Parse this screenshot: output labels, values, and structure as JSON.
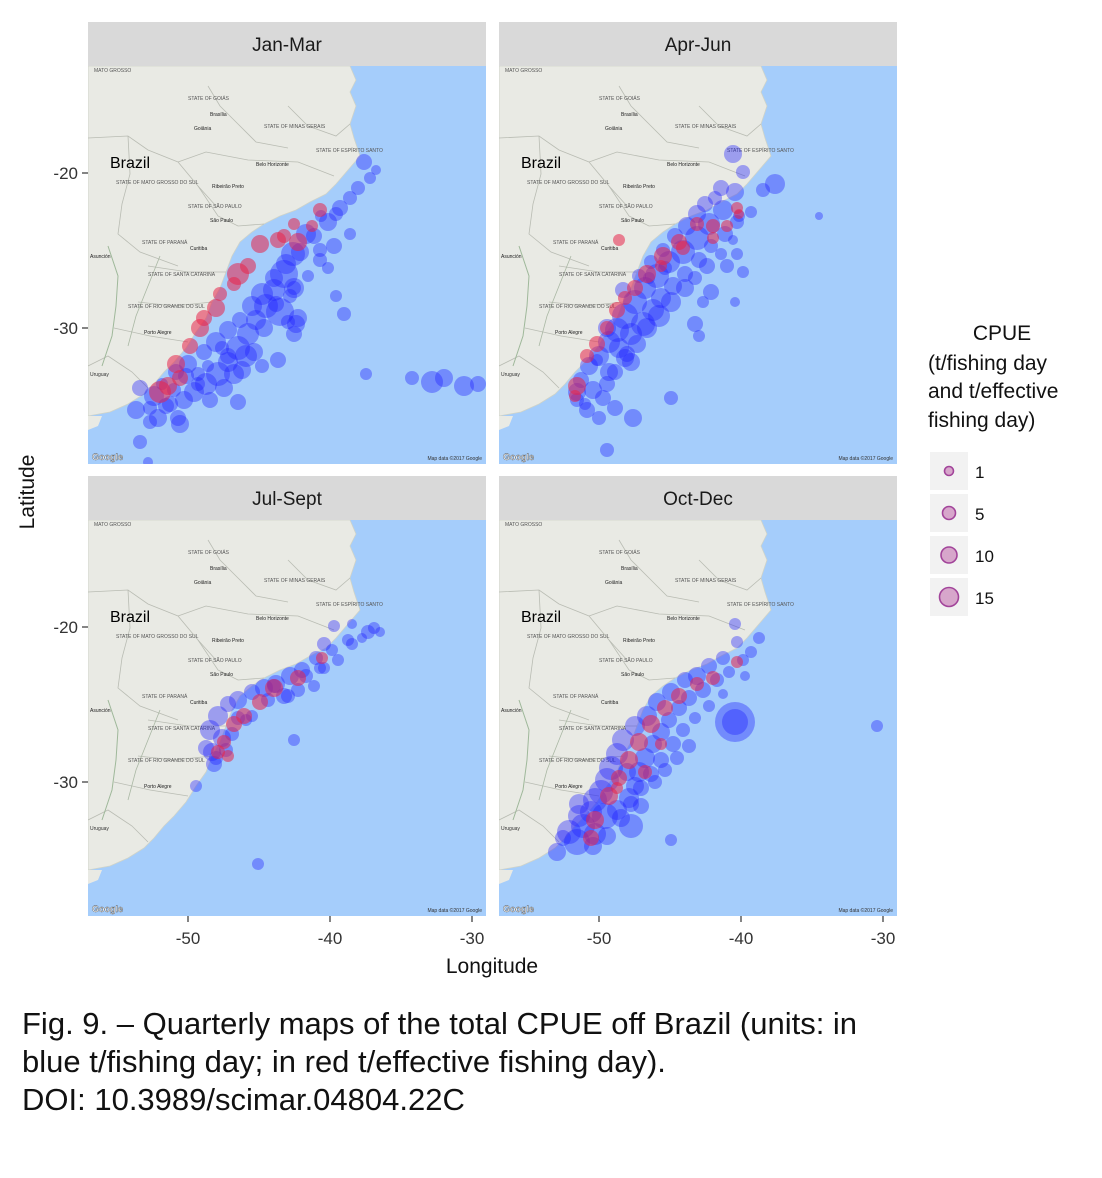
{
  "panels": [
    {
      "title": "Jan-Mar",
      "labels": {
        "country": "Brazil",
        "state1": "STATE OF GOIÁS",
        "city1": "Brasília",
        "city2": "Goiânia",
        "state2": "STATE OF MINAS GERAIS",
        "city3": "Belo Horizonte",
        "state3": "STATE OF ESPÍRITO SANTO",
        "city4": "Ribeirão Preto",
        "state4": "STATE OF MATO GROSSO DO SUL",
        "state5": "STATE OF SÃO PAULO",
        "city5": "São Paulo",
        "state6": "STATE OF PARANÁ",
        "city6": "Curitiba",
        "state7": "STATE OF SANTA CATARINA",
        "state8": "STATE OF RIO GRANDE DO SUL",
        "city7": "Porto Alegre",
        "country2": "Uruguay",
        "city8": "Asunción",
        "state9": "MATO GROSSO",
        "attribution": "Map data ©2017 Google",
        "logo": "Google"
      }
    },
    {
      "title": "Apr-Jun",
      "labels": {
        "country": "Brazil",
        "state1": "STATE OF GOIÁS",
        "city1": "Brasília",
        "city2": "Goiânia",
        "state2": "STATE OF MINAS GERAIS",
        "city3": "Belo Horizonte",
        "state3": "STATE OF ESPÍRITO SANTO",
        "city4": "Ribeirão Preto",
        "state4": "STATE OF MATO GROSSO DO SUL",
        "state5": "STATE OF SÃO PAULO",
        "city5": "São Paulo",
        "state6": "STATE OF PARANÁ",
        "city6": "Curitiba",
        "state7": "STATE OF SANTA CATARINA",
        "state8": "STATE OF RIO GRANDE DO SUL",
        "city7": "Porto Alegre",
        "country2": "Uruguay",
        "city8": "Asunción",
        "state9": "MATO GROSSO",
        "attribution": "Map data ©2017 Google",
        "logo": "Google"
      }
    },
    {
      "title": "Jul-Sept",
      "labels": {
        "country": "Brazil",
        "state1": "STATE OF GOIÁS",
        "city1": "Brasília",
        "city2": "Goiânia",
        "state2": "STATE OF MINAS GERAIS",
        "city3": "Belo Horizonte",
        "state3": "STATE OF ESPÍRITO SANTO",
        "city4": "Ribeirão Preto",
        "state4": "STATE OF MATO GROSSO DO SUL",
        "state5": "STATE OF SÃO PAULO",
        "city5": "São Paulo",
        "state6": "STATE OF PARANÁ",
        "city6": "Curitiba",
        "state7": "STATE OF SANTA CATARINA",
        "state8": "STATE OF RIO GRANDE DO SUL",
        "city7": "Porto Alegre",
        "country2": "Uruguay",
        "city8": "Asunción",
        "state9": "MATO GROSSO",
        "attribution": "Map data ©2017 Google",
        "logo": "Google"
      }
    },
    {
      "title": "Oct-Dec",
      "labels": {
        "country": "Brazil",
        "state1": "STATE OF GOIÁS",
        "city1": "Brasília",
        "city2": "Goiânia",
        "state2": "STATE OF MINAS GERAIS",
        "city3": "Belo Horizonte",
        "state3": "STATE OF ESPÍRITO SANTO",
        "city4": "Ribeirão Preto",
        "state4": "STATE OF MATO GROSSO DO SUL",
        "state5": "STATE OF SÃO PAULO",
        "city5": "São Paulo",
        "state6": "STATE OF PARANÁ",
        "city6": "Curitiba",
        "state7": "STATE OF SANTA CATARINA",
        "state8": "STATE OF RIO GRANDE DO SUL",
        "city7": "Porto Alegre",
        "country2": "Uruguay",
        "city8": "Asunción",
        "state9": "MATO GROSSO",
        "attribution": "Map data ©2017 Google",
        "logo": "Google"
      }
    }
  ],
  "axes": {
    "xlabel": "Longitude",
    "ylabel": "Latitude",
    "x_ticks": [
      "-50",
      "-40",
      "-30"
    ],
    "y_ticks": [
      "-20",
      "-30"
    ]
  },
  "legend": {
    "title_lines": [
      "CPUE",
      "(t/fishing day",
      "and t/effective",
      "fishing day)"
    ],
    "items": [
      "1",
      "5",
      "10",
      "15"
    ]
  },
  "colors": {
    "ocean": "#a5cdfb",
    "land": "#e9eae4",
    "strip": "#d9d9d9",
    "blue_series": "#1f1fff",
    "red_series": "#e8244a"
  },
  "caption": {
    "lines": [
      "Fig. 9. – Quarterly maps of the total CPUE off Brazil (units: in",
      "blue t/fishing day; in red t/effective fishing day).",
      "DOI: 10.3989/scimar.04804.22C"
    ]
  }
}
